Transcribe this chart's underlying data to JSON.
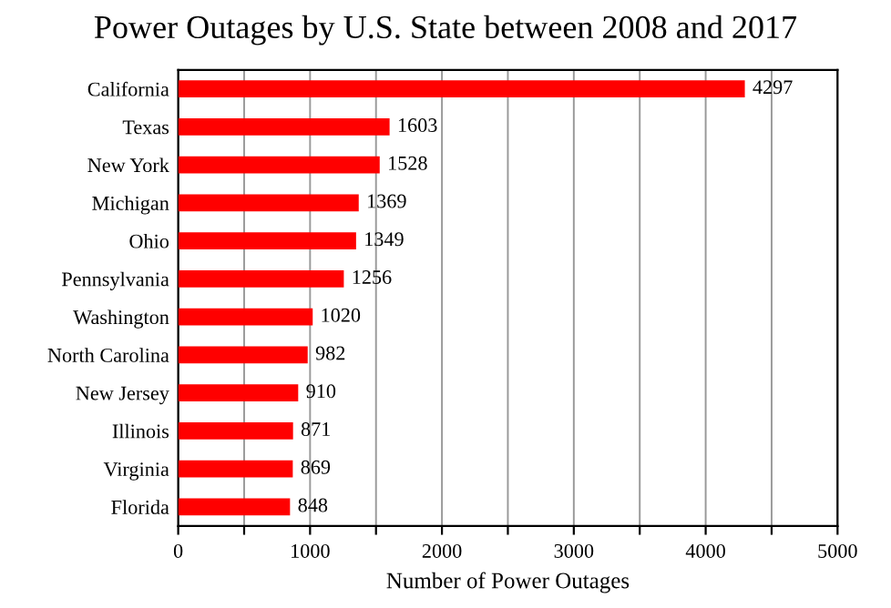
{
  "chart_data": {
    "type": "bar",
    "orientation": "horizontal",
    "title": "Power Outages by U.S. State between 2008 and 2017",
    "xlabel": "Number of Power Outages",
    "categories": [
      "California",
      "Texas",
      "New York",
      "Michigan",
      "Ohio",
      "Pennsylvania",
      "Washington",
      "North Carolina",
      "New Jersey",
      "Illinois",
      "Virginia",
      "Florida"
    ],
    "values": [
      4297,
      1603,
      1528,
      1369,
      1349,
      1256,
      1020,
      982,
      910,
      871,
      869,
      848
    ],
    "color": "#ff0000",
    "xlim": [
      0,
      5000
    ],
    "xticks": [
      0,
      {
        "value": 500,
        "label": null
      },
      1000,
      {
        "value": 1500,
        "label": null
      },
      2000,
      {
        "value": 2500,
        "label": null
      },
      3000,
      {
        "value": 3500,
        "label": null
      },
      4000,
      {
        "value": 4500,
        "label": null
      },
      5000
    ],
    "grid": "x",
    "data_labels": true
  }
}
